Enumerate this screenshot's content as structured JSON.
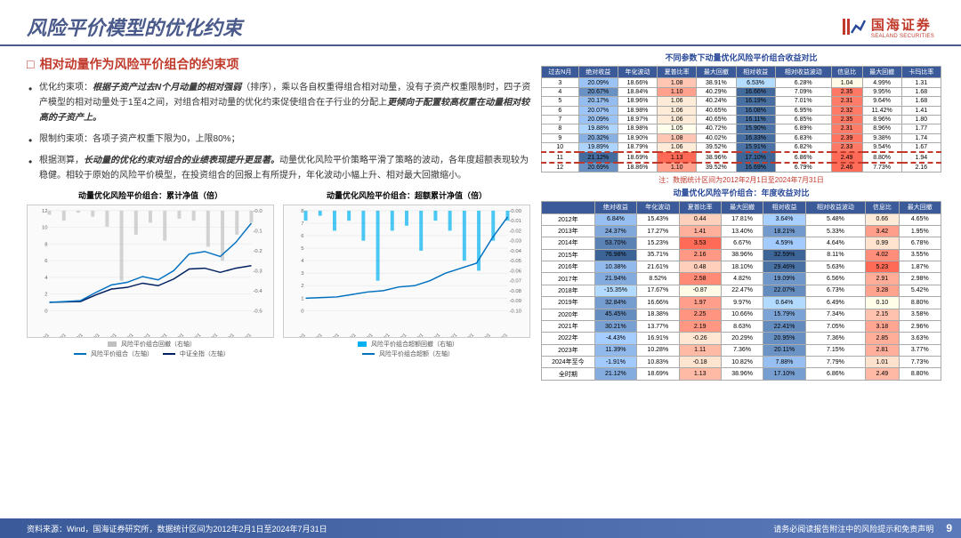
{
  "header": {
    "title": "风险平价模型的优化约束",
    "logo_cn": "国海证券",
    "logo_en": "SEALAND SECURITIES"
  },
  "subtitle": "相对动量作为风险平价组合的约束项",
  "bullets": [
    {
      "pre": "优化约束项：",
      "bold": "根据子资产过去N个月动量的相对强弱",
      "post": "（排序），乘以各自权重得组合相对动量，没有子资产权重限制时，四子资产模型的相对动量处于1至4之间，对组合相对动量的优化约束促使组合在子行业的分配上",
      "bold2": "更倾向于配置较高权重在动量相对较高的子资产上。"
    },
    {
      "pre": "限制约束项：各项子资产权重下限为0，上限80%；"
    },
    {
      "pre": "根据测算，",
      "bold": "长动量的优化约束对组合的业绩表现提升更显著。",
      "post": "动量优化风险平价策略平滑了策略的波动，各年度超额表现较为稳健。相较于原始的风险平价模型，在投资组合的回报上有所提升，年化波动小幅上升、相对最大回撤缩小。"
    }
  ],
  "chart1": {
    "title": "动量优化风险平价组合：累计净值（倍）",
    "xlabels": [
      "2012/2/1",
      "2013/2/1",
      "2014/2/1",
      "2015/2/1",
      "2016/2/1",
      "2017/2/1",
      "2018/2/1",
      "2019/2/1",
      "2020/2/1",
      "2021/2/1",
      "2022/2/1",
      "2023/2/1",
      "2024/2/1"
    ],
    "yleft": {
      "min": 0,
      "max": 12,
      "step": 2
    },
    "yright": {
      "min": -0.5,
      "max": 0,
      "step": 0.1
    },
    "series_blue": [
      1,
      1.1,
      1.2,
      2.2,
      3.1,
      3.4,
      4.1,
      3.7,
      4.8,
      6.8,
      7.1,
      6.5,
      8.2,
      10.5
    ],
    "series_navy": [
      1,
      1.05,
      1.1,
      1.9,
      2.6,
      2.8,
      3.3,
      3.0,
      3.8,
      5.0,
      5.1,
      4.6,
      5.1,
      5.4
    ],
    "series_gray": [
      -0.02,
      -0.05,
      -0.01,
      -0.03,
      -0.08,
      -0.35,
      -0.12,
      -0.06,
      -0.15,
      -0.04,
      -0.05,
      -0.18,
      -0.25,
      -0.12,
      -0.06
    ],
    "colors": {
      "blue": "#0070c0",
      "navy": "#002060",
      "gray": "#c0c0c0"
    },
    "legend": [
      "风险平价组合回撤（右轴）",
      "风险平价组合（左轴）",
      "中证全指（左轴）"
    ]
  },
  "chart2": {
    "title": "动量优化风险平价组合：超额累计净值（倍）",
    "xlabels": [
      "2012/2/1",
      "2013/2/1",
      "2014/2/1",
      "2015/2/1",
      "2016/2/1",
      "2017/2/1",
      "2018/2/1",
      "2019/2/1",
      "2020/2/1",
      "2021/2/1",
      "2022/2/1",
      "2023/2/1",
      "2024/2/1"
    ],
    "yleft": {
      "min": 0,
      "max": 8,
      "step": 1
    },
    "yright": {
      "min": -0.1,
      "max": 0,
      "step": 0.01
    },
    "series_blue": [
      1,
      1.05,
      1.1,
      1.3,
      1.5,
      1.6,
      1.9,
      2.0,
      2.4,
      3.0,
      3.4,
      3.8,
      5.8,
      7.5
    ],
    "series_cyan": [
      -0.01,
      -0.005,
      -0.02,
      -0.01,
      -0.03,
      -0.07,
      -0.02,
      -0.015,
      -0.04,
      -0.01,
      -0.02,
      -0.05,
      -0.06,
      -0.03,
      -0.01
    ],
    "colors": {
      "blue": "#0070c0",
      "cyan": "#00b0f0"
    },
    "legend": [
      "风险平价组合超额回撤（右轴）",
      "风险平价组合超额（左轴）"
    ]
  },
  "table1": {
    "title": "不同参数下动量优化风险平价组合收益对比",
    "headers": [
      "过去N月",
      "绝对收益",
      "年化波动",
      "夏普比率",
      "最大回撤",
      "相对收益",
      "相对收益波动",
      "信息比",
      "最大回撤",
      "卡玛比率"
    ],
    "rows": [
      [
        "3",
        "20.09%",
        "18.66%",
        "1.08",
        "38.91%",
        "6.53%",
        "6.28%",
        "1.04",
        "4.99%",
        "1.31"
      ],
      [
        "4",
        "20.67%",
        "18.84%",
        "1.10",
        "40.29%",
        "16.66%",
        "7.09%",
        "2.35",
        "9.95%",
        "1.68"
      ],
      [
        "5",
        "20.17%",
        "18.96%",
        "1.06",
        "40.24%",
        "16.19%",
        "7.01%",
        "2.31",
        "9.64%",
        "1.68"
      ],
      [
        "6",
        "20.07%",
        "18.98%",
        "1.06",
        "40.65%",
        "16.08%",
        "6.95%",
        "2.32",
        "11.42%",
        "1.41"
      ],
      [
        "7",
        "20.09%",
        "18.97%",
        "1.06",
        "40.65%",
        "16.11%",
        "6.85%",
        "2.35",
        "8.96%",
        "1.80"
      ],
      [
        "8",
        "19.88%",
        "18.98%",
        "1.05",
        "40.72%",
        "15.90%",
        "6.89%",
        "2.31",
        "8.96%",
        "1.77"
      ],
      [
        "9",
        "20.32%",
        "18.90%",
        "1.08",
        "40.02%",
        "16.33%",
        "6.83%",
        "2.39",
        "9.38%",
        "1.74"
      ],
      [
        "10",
        "19.89%",
        "18.79%",
        "1.06",
        "39.52%",
        "15.91%",
        "6.82%",
        "2.33",
        "9.54%",
        "1.67"
      ],
      [
        "11",
        "21.12%",
        "18.69%",
        "1.13",
        "38.96%",
        "17.10%",
        "6.86%",
        "2.49",
        "8.80%",
        "1.94"
      ],
      [
        "12",
        "20.69%",
        "18.86%",
        "1.10",
        "39.52%",
        "16.69%",
        "6.79%",
        "2.46",
        "7.73%",
        "2.16"
      ]
    ],
    "highlight_row": 8,
    "cell_colors": {
      "c0": "#ffffff",
      "c1": "#5a8ac8",
      "c2": "#7aa0d0",
      "c3": "#9ab8dc",
      "c4": "#bad0e8",
      "r1": "#f4a8a0",
      "r2": "#e88070",
      "r3": "#dc5848",
      "r4": "#ffffff"
    }
  },
  "table2": {
    "title": "动量优化风险平价组合：年度收益对比",
    "note": "注：数据统计区间为2012年2月1日至2024年7月31日",
    "headers": [
      "",
      "绝对收益",
      "年化波动",
      "夏普比率",
      "最大回撤",
      "相对收益",
      "相对收益波动",
      "信息比",
      "最大回撤"
    ],
    "rows": [
      [
        "2012年",
        "6.84%",
        "15.43%",
        "0.44",
        "17.81%",
        "3.64%",
        "5.48%",
        "0.66",
        "4.65%"
      ],
      [
        "2013年",
        "24.37%",
        "17.27%",
        "1.41",
        "13.40%",
        "18.21%",
        "5.33%",
        "3.42",
        "1.95%"
      ],
      [
        "2014年",
        "53.70%",
        "15.23%",
        "3.53",
        "6.67%",
        "4.59%",
        "4.64%",
        "0.99",
        "6.78%"
      ],
      [
        "2015年",
        "76.98%",
        "35.71%",
        "2.16",
        "38.96%",
        "32.59%",
        "8.11%",
        "4.02",
        "3.55%"
      ],
      [
        "2016年",
        "10.38%",
        "21.61%",
        "0.48",
        "18.10%",
        "29.46%",
        "5.63%",
        "5.23",
        "1.87%"
      ],
      [
        "2017年",
        "21.94%",
        "8.52%",
        "2.58",
        "4.82%",
        "19.09%",
        "6.56%",
        "2.91",
        "2.98%"
      ],
      [
        "2018年",
        "-15.35%",
        "17.67%",
        "-0.87",
        "22.47%",
        "22.07%",
        "6.73%",
        "3.28",
        "5.42%"
      ],
      [
        "2019年",
        "32.84%",
        "16.66%",
        "1.97",
        "9.97%",
        "0.64%",
        "6.49%",
        "0.10",
        "8.80%"
      ],
      [
        "2020年",
        "45.45%",
        "18.38%",
        "2.25",
        "10.66%",
        "15.79%",
        "7.34%",
        "2.15",
        "3.58%"
      ],
      [
        "2021年",
        "30.21%",
        "13.77%",
        "2.19",
        "8.63%",
        "22.41%",
        "7.05%",
        "3.18",
        "2.96%"
      ],
      [
        "2022年",
        "-4.43%",
        "16.91%",
        "-0.26",
        "20.29%",
        "20.95%",
        "7.36%",
        "2.85",
        "3.63%"
      ],
      [
        "2023年",
        "11.39%",
        "10.28%",
        "1.11",
        "7.36%",
        "20.11%",
        "7.15%",
        "2.81",
        "3.77%"
      ],
      [
        "2024年至今",
        "-1.91%",
        "10.83%",
        "-0.18",
        "10.82%",
        "7.88%",
        "7.79%",
        "1.01",
        "7.73%"
      ],
      [
        "全时期",
        "21.12%",
        "18.69%",
        "1.13",
        "38.96%",
        "17.10%",
        "6.86%",
        "2.49",
        "8.80%"
      ]
    ]
  },
  "footer": {
    "left": "资料来源：Wind，国海证券研究所，数据统计区间为2012年2月1日至2024年7月31日",
    "right": "请务必阅读报告附注中的风险提示和免责声明",
    "page": "9"
  }
}
